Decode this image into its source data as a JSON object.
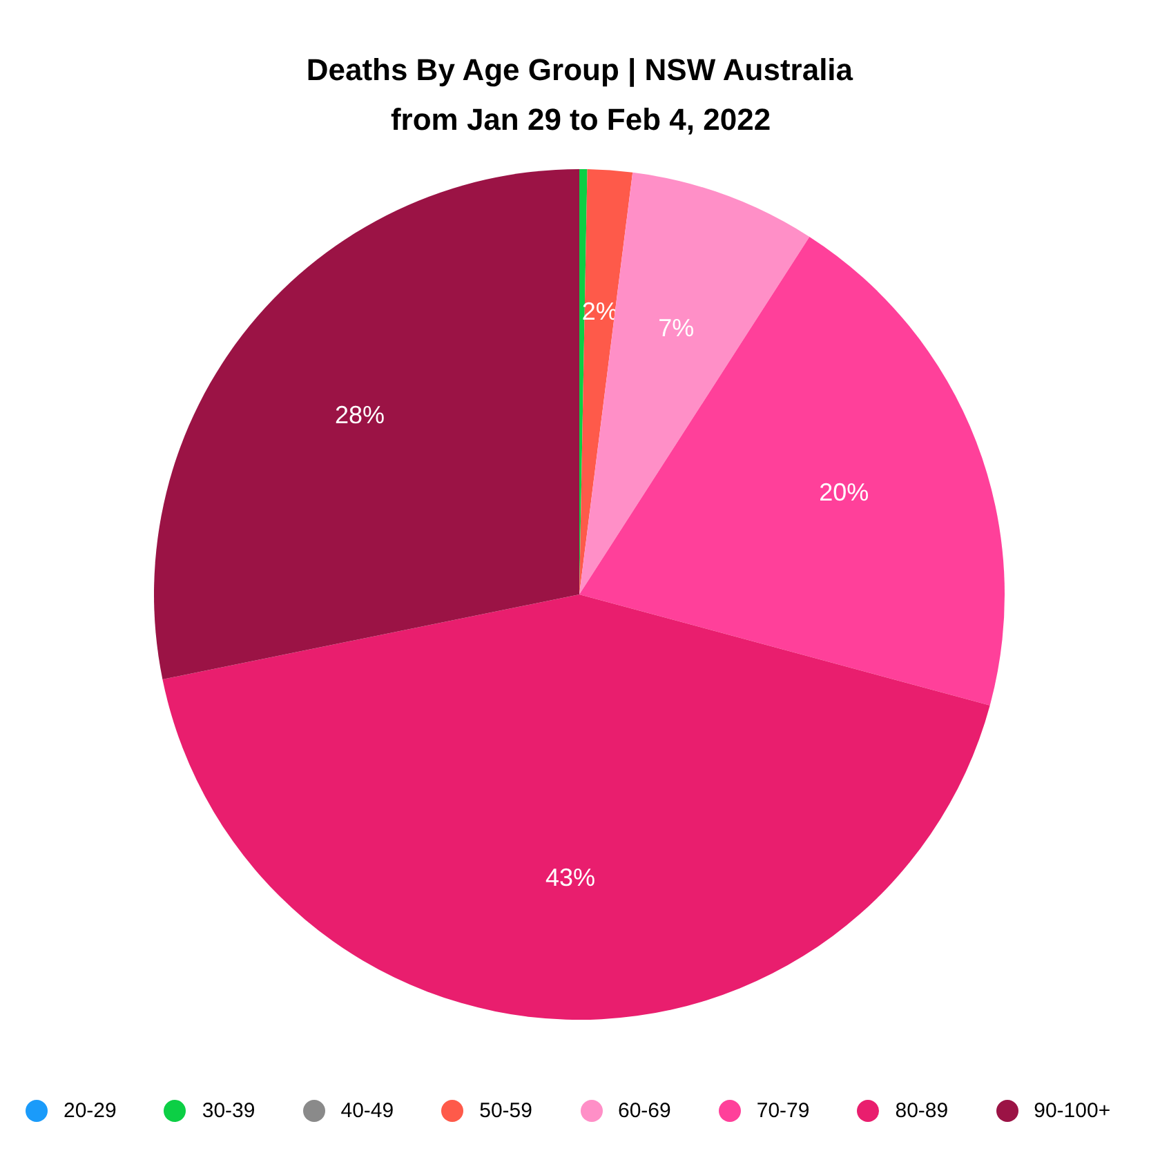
{
  "chart_data": {
    "type": "pie",
    "title": "Deaths By Age Group | NSW Australia\nfrom Jan 29 to Feb 4, 2022",
    "categories": [
      "20-29",
      "30-39",
      "40-49",
      "50-59",
      "60-69",
      "70-79",
      "80-89",
      "90-100+"
    ],
    "values": [
      0,
      0.3,
      0,
      1.7,
      7.1,
      20.1,
      42.6,
      28.2
    ],
    "colors": [
      "#1a9bfa",
      "#0ccf45",
      "#8a8a8a",
      "#fe5a4a",
      "#ff8fc7",
      "#ff409a",
      "#e91e6e",
      "#9b1345"
    ],
    "value_labels": [
      null,
      null,
      null,
      "2%",
      "7%",
      "20%",
      "43%",
      "28%"
    ],
    "legend": "bottom"
  }
}
